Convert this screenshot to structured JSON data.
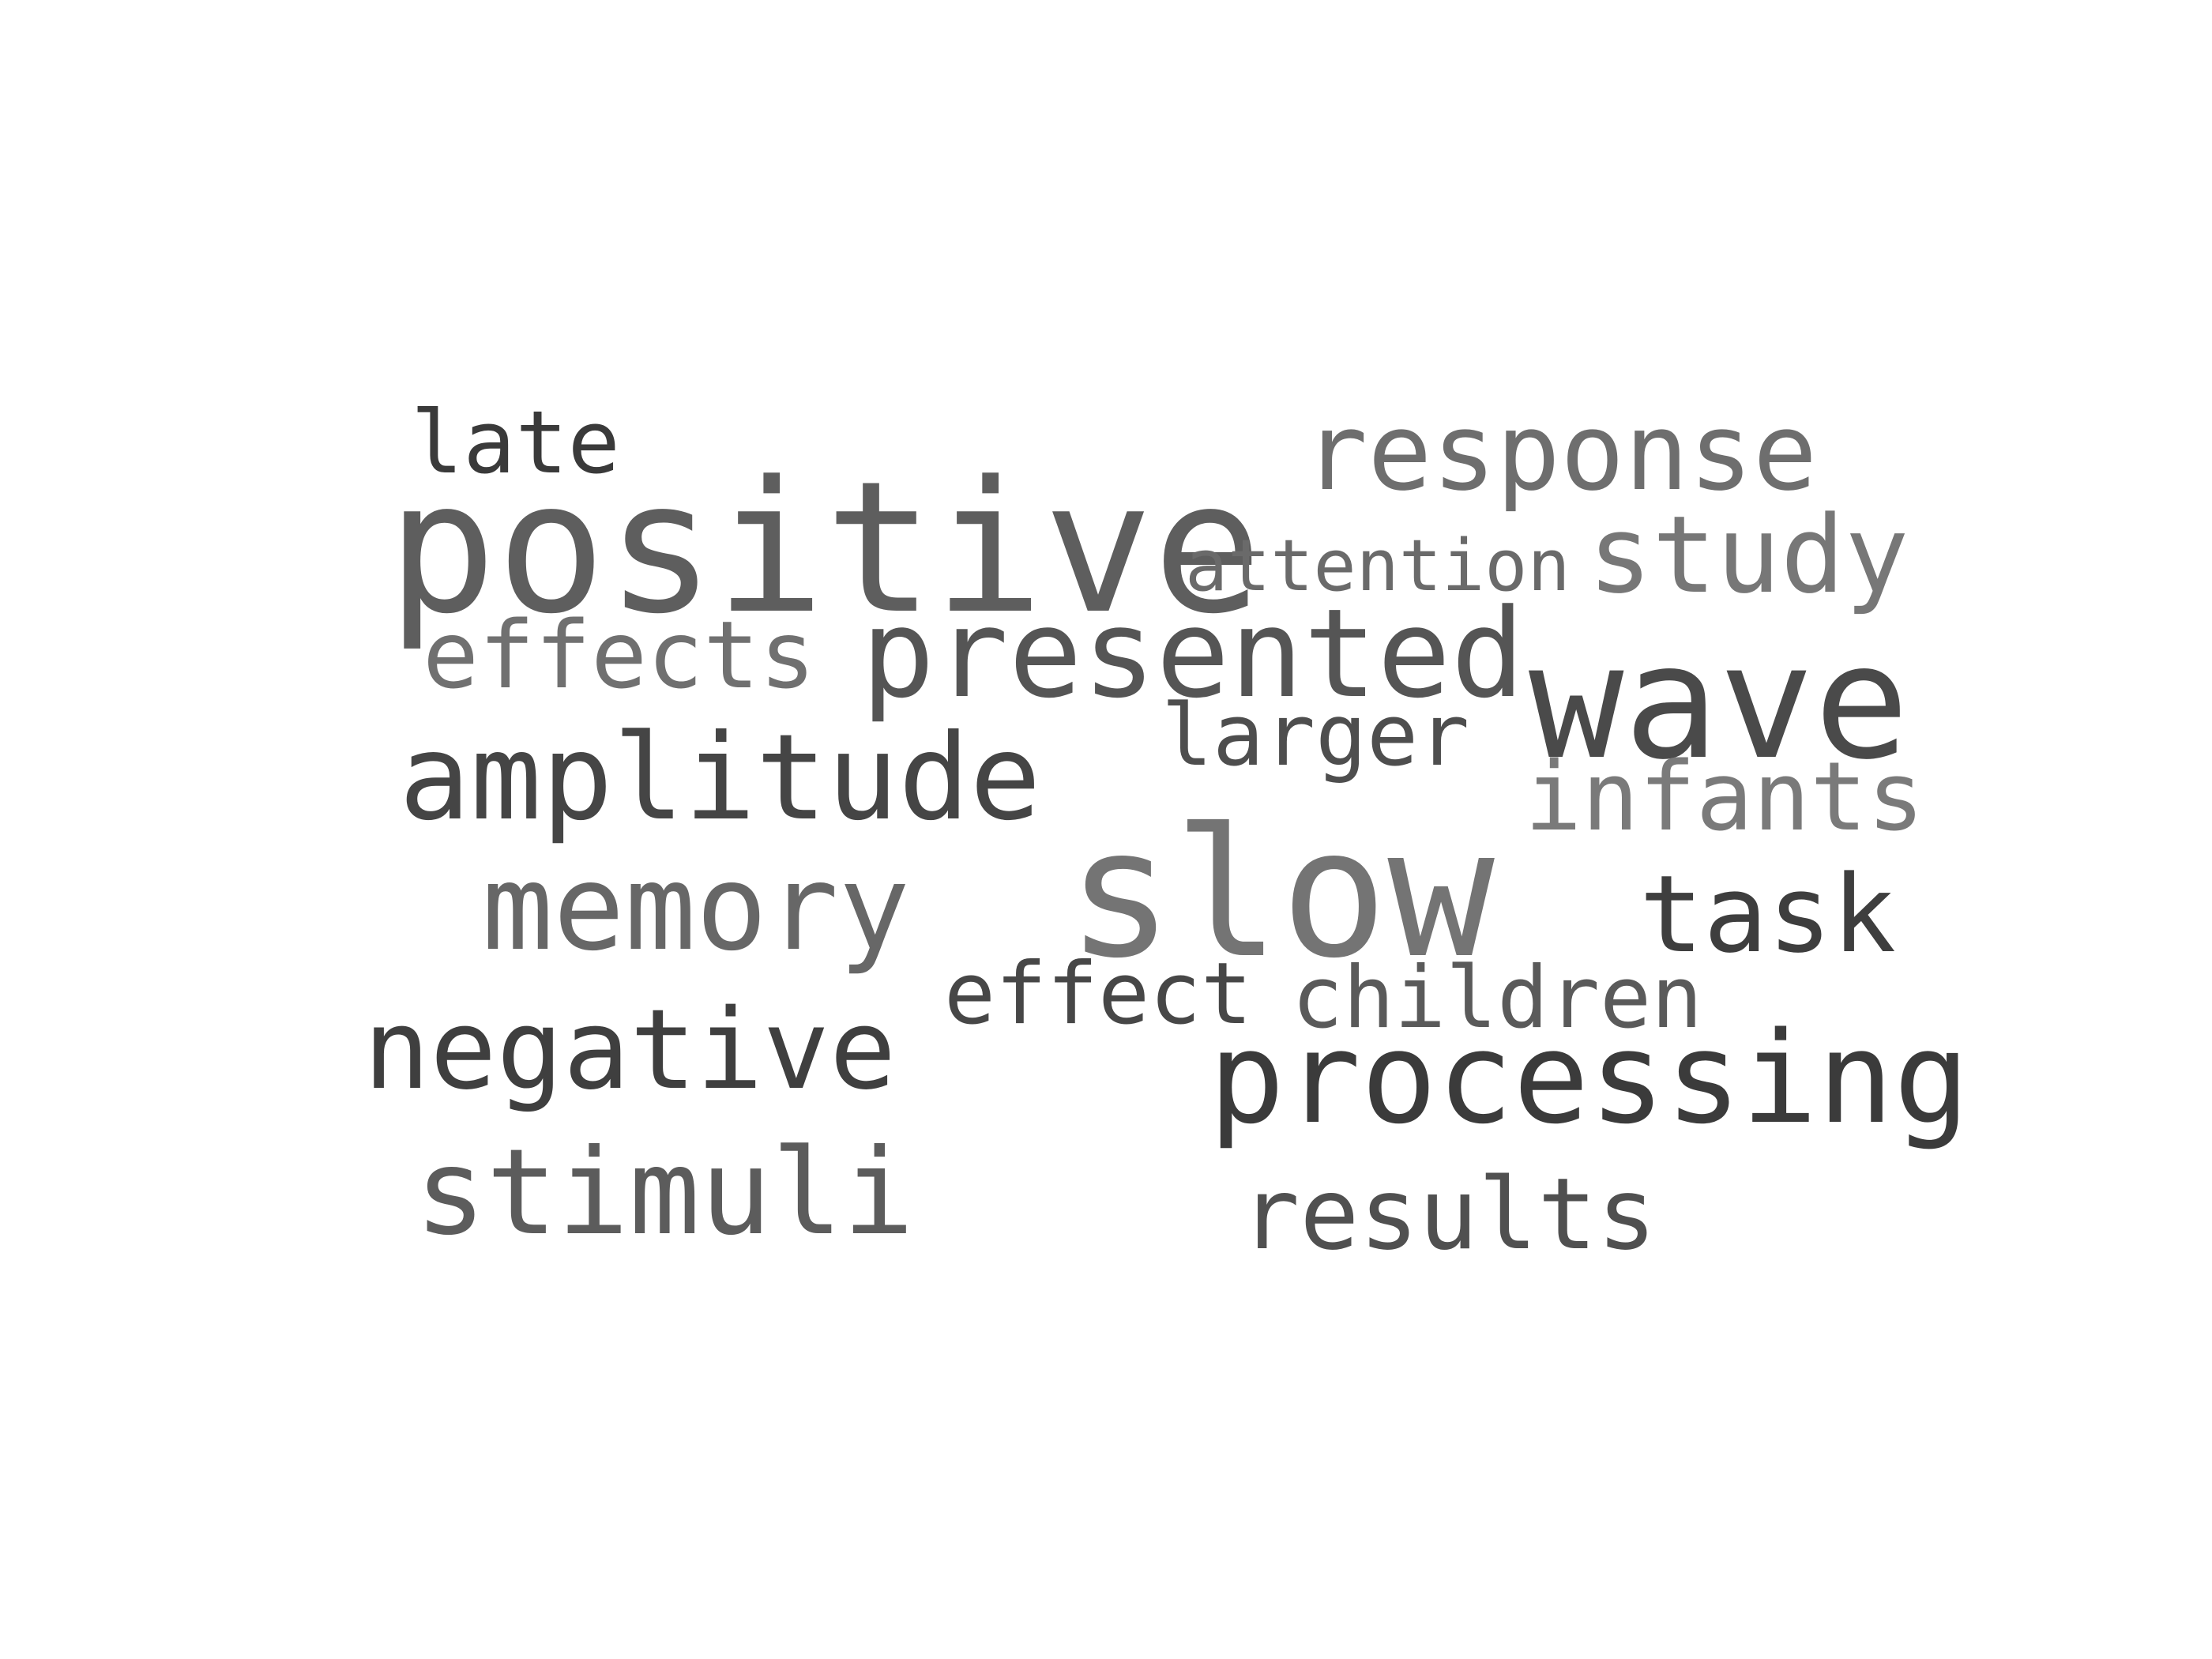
{
  "cloud": {
    "words": [
      {
        "key": "late",
        "text": "late",
        "color": "#3a3a3a"
      },
      {
        "key": "response",
        "text": "response",
        "color": "#6e6e6e"
      },
      {
        "key": "positive",
        "text": "positive",
        "color": "#5e5e5e"
      },
      {
        "key": "attention",
        "text": "attention",
        "color": "#6a6a6a"
      },
      {
        "key": "study",
        "text": "study",
        "color": "#777777"
      },
      {
        "key": "effects",
        "text": "effects",
        "color": "#707070"
      },
      {
        "key": "presented",
        "text": "presented",
        "color": "#555555"
      },
      {
        "key": "wave",
        "text": "wave",
        "color": "#4a4a4a"
      },
      {
        "key": "larger",
        "text": "larger",
        "color": "#4e4e4e"
      },
      {
        "key": "amplitude",
        "text": "amplitude",
        "color": "#454545"
      },
      {
        "key": "infants",
        "text": "infants",
        "color": "#7a7a7a"
      },
      {
        "key": "slow",
        "text": "slow",
        "color": "#747474"
      },
      {
        "key": "memory",
        "text": "memory",
        "color": "#676767"
      },
      {
        "key": "task",
        "text": "task",
        "color": "#3e3e3e"
      },
      {
        "key": "effect",
        "text": "effect",
        "color": "#474747"
      },
      {
        "key": "children",
        "text": "children",
        "color": "#5a5a5a"
      },
      {
        "key": "negative",
        "text": "negative",
        "color": "#3f3f3f"
      },
      {
        "key": "processing",
        "text": "processing",
        "color": "#3b3b3b"
      },
      {
        "key": "stimuli",
        "text": "stimuli",
        "color": "#5c5c5c"
      },
      {
        "key": "results",
        "text": "results",
        "color": "#505050"
      }
    ]
  }
}
